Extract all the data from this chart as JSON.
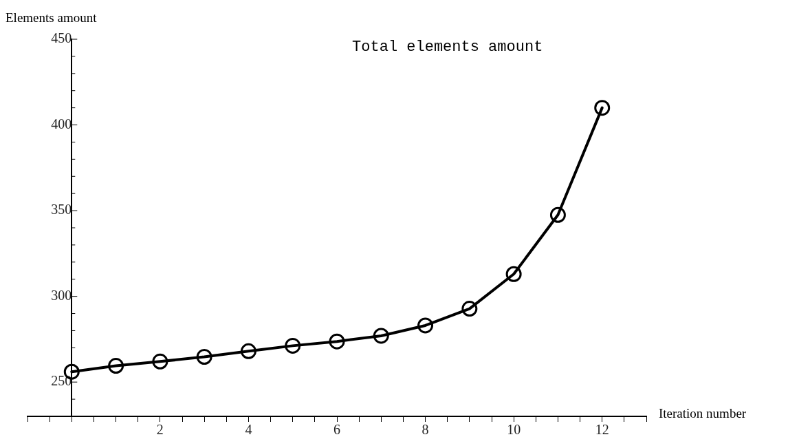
{
  "chart_data": {
    "type": "line",
    "title": "Total elements amount",
    "xlabel": "Iteration number",
    "ylabel": "Elements amount",
    "x": [
      0,
      1,
      2,
      3,
      4,
      5,
      6,
      7,
      8,
      9,
      10,
      11,
      12
    ],
    "series": [
      {
        "color": "#000000",
        "values": [
          256,
          259.5,
          262,
          264.7,
          268,
          271.2,
          273.7,
          277,
          283,
          292.8,
          313,
          347.5,
          410
        ]
      }
    ],
    "xlim": [
      -1,
      13
    ],
    "xticks": [
      {
        "value": -1,
        "label": null
      },
      {
        "value": -0.5,
        "label": null
      },
      {
        "value": 0,
        "label": null
      },
      {
        "value": 0.5,
        "label": null
      },
      {
        "value": 1,
        "label": null
      },
      {
        "value": 1.5,
        "label": null
      },
      2,
      {
        "value": 2.5,
        "label": null
      },
      {
        "value": 3,
        "label": null
      },
      {
        "value": 3.5,
        "label": null
      },
      4,
      {
        "value": 4.5,
        "label": null
      },
      {
        "value": 5,
        "label": null
      },
      {
        "value": 5.5,
        "label": null
      },
      6,
      {
        "value": 6.5,
        "label": null
      },
      {
        "value": 7,
        "label": null
      },
      {
        "value": 7.5,
        "label": null
      },
      8,
      {
        "value": 8.5,
        "label": null
      },
      {
        "value": 9,
        "label": null
      },
      {
        "value": 9.5,
        "label": null
      },
      10,
      {
        "value": 10.5,
        "label": null
      },
      {
        "value": 11,
        "label": null
      },
      {
        "value": 11.5,
        "label": null
      },
      12,
      {
        "value": 12.5,
        "label": null
      },
      {
        "value": 13,
        "label": null
      }
    ],
    "ylim": [
      230,
      450
    ],
    "yticks": [
      {
        "value": 230,
        "label": null
      },
      {
        "value": 240,
        "label": null
      },
      250,
      {
        "value": 260,
        "label": null
      },
      {
        "value": 270,
        "label": null
      },
      {
        "value": 280,
        "label": null
      },
      {
        "value": 290,
        "label": null
      },
      300,
      {
        "value": 310,
        "label": null
      },
      {
        "value": 320,
        "label": null
      },
      {
        "value": 330,
        "label": null
      },
      {
        "value": 340,
        "label": null
      },
      350,
      {
        "value": 360,
        "label": null
      },
      {
        "value": 370,
        "label": null
      },
      {
        "value": 380,
        "label": null
      },
      {
        "value": 390,
        "label": null
      },
      400,
      {
        "value": 410,
        "label": null
      },
      {
        "value": 420,
        "label": null
      },
      {
        "value": 430,
        "label": null
      },
      {
        "value": 440,
        "label": null
      },
      450
    ],
    "marker": "circle",
    "line_style": "solid",
    "grid": false,
    "legend": false
  }
}
